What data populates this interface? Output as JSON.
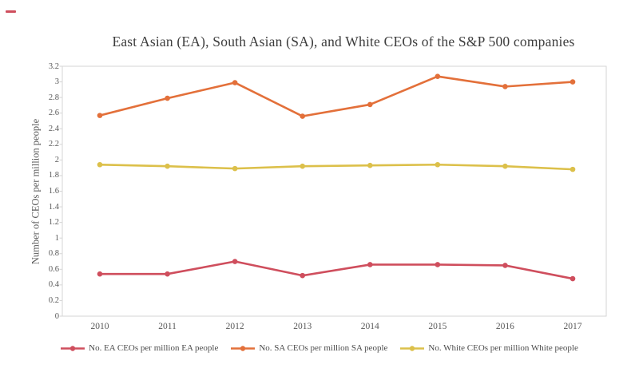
{
  "chart_data": {
    "type": "line",
    "title": "East Asian (EA), South Asian (SA), and White CEOs of the S&P 500 companies",
    "xlabel": "",
    "ylabel": "Number of CEOs per million people",
    "categories": [
      "2010",
      "2011",
      "2012",
      "2013",
      "2014",
      "2015",
      "2016",
      "2017"
    ],
    "ylim": [
      0,
      3.2
    ],
    "ytick_step": 0.2,
    "grid": false,
    "legend_position": "bottom",
    "axis_color": "#d6d6d6",
    "series": [
      {
        "name": "No. EA CEOs per million EA people",
        "color": "#cf4e5d",
        "values": [
          0.54,
          0.54,
          0.7,
          0.52,
          0.66,
          0.66,
          0.65,
          0.48
        ]
      },
      {
        "name": "No. SA CEOs per million SA people",
        "color": "#e3703a",
        "values": [
          2.57,
          2.79,
          2.99,
          2.56,
          2.71,
          3.07,
          2.94,
          3.0
        ]
      },
      {
        "name": "No. White CEOs per million White people",
        "color": "#dcc04a",
        "values": [
          1.94,
          1.92,
          1.89,
          1.92,
          1.93,
          1.94,
          1.92,
          1.88
        ]
      }
    ],
    "marker": {
      "shape": "circle-icon"
    }
  },
  "decor": {
    "red_dash_color": "#cf4e5d"
  }
}
